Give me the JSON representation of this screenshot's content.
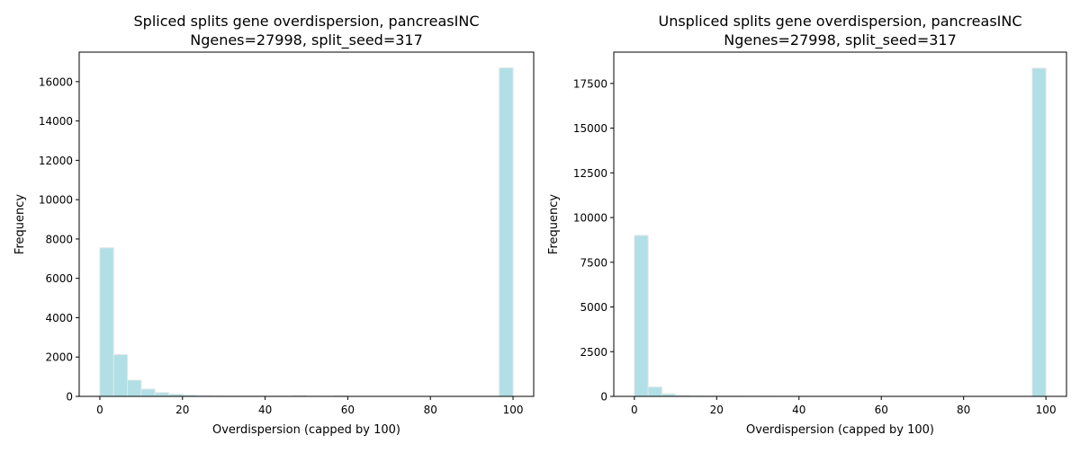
{
  "chart_data": [
    {
      "type": "bar",
      "title": "Spliced splits gene overdispersion, pancreasINC",
      "subtitle": "Ngenes=27998, split_seed=317",
      "xlabel": "Overdispersion (capped by 100)",
      "ylabel": "Frequency",
      "xlim": [
        -5,
        105
      ],
      "ylim": [
        0,
        17500
      ],
      "xticks": [
        0,
        20,
        40,
        60,
        80,
        100
      ],
      "yticks": [
        0,
        2000,
        4000,
        6000,
        8000,
        10000,
        12000,
        14000,
        16000
      ],
      "bin_edges": [
        0,
        3.33,
        6.67,
        10,
        13.33,
        16.67,
        20,
        23.33,
        26.67,
        30,
        33.33,
        36.67,
        40,
        43.33,
        46.67,
        50,
        53.33,
        56.67,
        60,
        63.33,
        66.67,
        70,
        73.33,
        76.67,
        80,
        83.33,
        86.67,
        90,
        93.33,
        96.67,
        100
      ],
      "values": [
        7550,
        2120,
        820,
        370,
        190,
        110,
        70,
        45,
        30,
        25,
        18,
        15,
        12,
        10,
        40,
        8,
        6,
        30,
        5,
        4,
        4,
        3,
        3,
        3,
        2,
        2,
        2,
        2,
        2,
        16700
      ],
      "grid": false,
      "bar_color": "#b0dfe5",
      "edge_color": "#e0e6e8"
    },
    {
      "type": "bar",
      "title": "Unspliced splits gene overdispersion, pancreasINC",
      "subtitle": "Ngenes=27998, split_seed=317",
      "xlabel": "Overdispersion (capped by 100)",
      "ylabel": "Frequency",
      "xlim": [
        -5,
        105
      ],
      "ylim": [
        0,
        19250
      ],
      "xticks": [
        0,
        20,
        40,
        60,
        80,
        100
      ],
      "yticks": [
        0,
        2500,
        5000,
        7500,
        10000,
        12500,
        15000,
        17500
      ],
      "bin_edges": [
        0,
        3.33,
        6.67,
        10,
        13.33,
        16.67,
        20,
        23.33,
        26.67,
        30,
        33.33,
        36.67,
        40,
        43.33,
        46.67,
        50,
        53.33,
        56.67,
        60,
        63.33,
        66.67,
        70,
        73.33,
        76.67,
        80,
        83.33,
        86.67,
        90,
        93.33,
        96.67,
        100
      ],
      "values": [
        9000,
        520,
        140,
        60,
        35,
        20,
        12,
        10,
        8,
        6,
        5,
        4,
        4,
        3,
        3,
        3,
        2,
        2,
        2,
        2,
        2,
        2,
        1,
        1,
        1,
        1,
        1,
        1,
        1,
        18350
      ],
      "grid": false,
      "bar_color": "#b0dfe5",
      "edge_color": "#e0e6e8"
    }
  ]
}
